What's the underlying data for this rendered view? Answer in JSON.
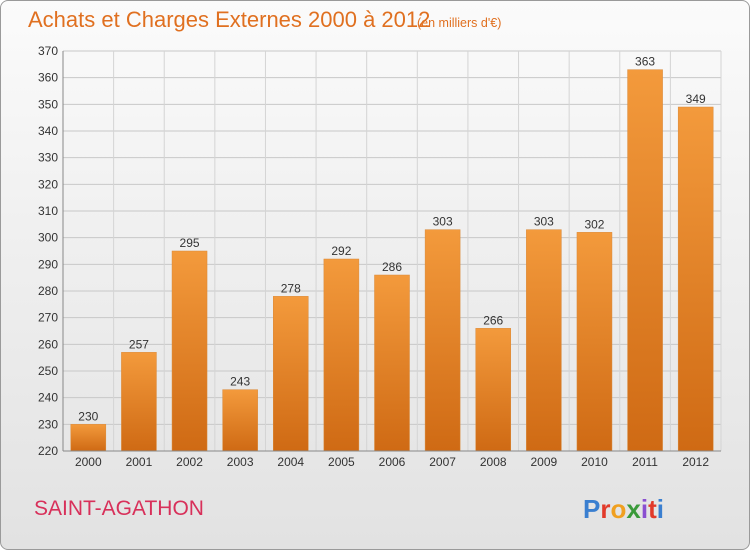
{
  "chart_data": {
    "type": "bar",
    "title": "Achats et Charges Externes 2000 à 2012",
    "subtitle": "(en milliers d'€)",
    "categories": [
      "2000",
      "2001",
      "2002",
      "2003",
      "2004",
      "2005",
      "2006",
      "2007",
      "2008",
      "2009",
      "2010",
      "2011",
      "2012"
    ],
    "values": [
      230,
      257,
      295,
      243,
      278,
      292,
      286,
      303,
      266,
      303,
      302,
      363,
      349
    ],
    "ylim": [
      220,
      370
    ],
    "yticks": [
      220,
      230,
      240,
      250,
      260,
      270,
      280,
      290,
      300,
      310,
      320,
      330,
      340,
      350,
      360,
      370
    ],
    "grid": true,
    "bar_color": "#f39a3c",
    "bar_color_dark": "#cf6a14"
  },
  "footer": {
    "commune": "SAINT-AGATHON",
    "logo_text": "Proxiti",
    "logo_colors": [
      "#3a7fd0",
      "#e23a2a",
      "#f0a020",
      "#3a9a3a",
      "#8a4fd0",
      "#e23a2a",
      "#3a7fd0"
    ]
  }
}
